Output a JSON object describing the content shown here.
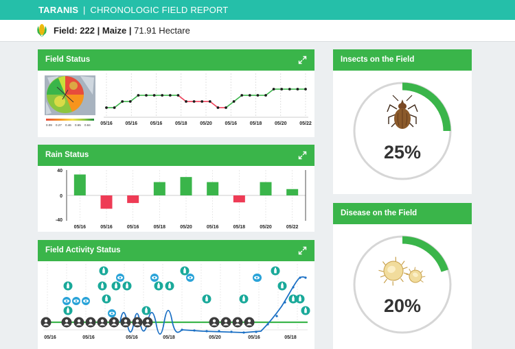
{
  "header": {
    "brand": "TARANIS",
    "separator": "|",
    "title": "CHRONOLOGIC FIELD REPORT"
  },
  "field": {
    "label": "Field:",
    "number": "222",
    "crop": "Maize",
    "area": "71.91 Hectare",
    "icon": "corn-icon"
  },
  "colors": {
    "teal": "#25bfa9",
    "green": "#3ab54a",
    "red": "#ee3b55",
    "blue": "#1a6fc4",
    "icon_teal": "#1aa99a",
    "icon_blue": "#2aa3d8"
  },
  "field_status": {
    "title": "Field Status",
    "map_legend": [
      "0.09",
      "0.27",
      "0.46",
      "0.65",
      "0.84"
    ],
    "x_ticks": [
      "05/16",
      "05/16",
      "05/16",
      "05/18",
      "05/20",
      "05/16",
      "05/18",
      "05/20",
      "05/22"
    ],
    "chart_data": {
      "type": "line",
      "values": [
        1,
        1,
        2,
        2,
        3,
        3,
        3,
        3,
        3,
        3,
        2,
        2,
        2,
        2,
        1,
        1,
        2,
        3,
        3,
        3,
        3,
        4,
        4,
        4,
        4,
        4
      ],
      "segment_colors": [
        "green",
        "green",
        "green",
        "green",
        "green",
        "green",
        "green",
        "green",
        "green",
        "red",
        "red",
        "red",
        "red",
        "red",
        "red",
        "green",
        "green",
        "green",
        "green",
        "green",
        "green",
        "green",
        "green",
        "green",
        "green"
      ]
    }
  },
  "rain_status": {
    "title": "Rain Status",
    "chart_data": {
      "type": "bar",
      "categories": [
        "05/16",
        "05/16",
        "05/16",
        "05/18",
        "05/20",
        "05/16",
        "05/18",
        "05/20",
        "05/22"
      ],
      "values": [
        33,
        -21,
        -12,
        21,
        29,
        21,
        -11,
        21,
        10
      ],
      "ylim": [
        -40,
        40
      ],
      "yticks": [
        "40",
        "0",
        "-40"
      ]
    }
  },
  "activity_status": {
    "title": "Field Activity Status",
    "x_ticks": [
      "05/16",
      "05/16",
      "05/16",
      "05/18",
      "05/20",
      "05/16",
      "05/18"
    ]
  },
  "insects": {
    "title": "Insects on the Field",
    "percent_label": "25%",
    "value": 0.25,
    "icon": "weevil-icon"
  },
  "disease": {
    "title": "Disease on the Field",
    "percent_label": "20%",
    "value": 0.2,
    "icon": "mite-icon"
  }
}
